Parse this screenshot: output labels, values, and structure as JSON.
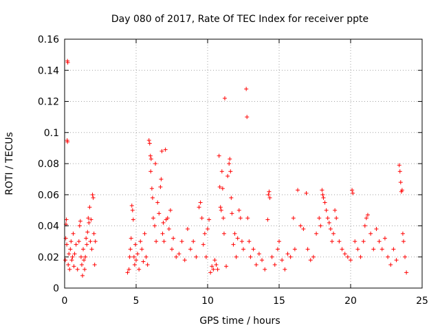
{
  "chart_data": {
    "type": "scatter",
    "title": "Day 080 of 2017, Rate Of TEC Index for receiver ppte",
    "xlabel": "GPS time / hours",
    "ylabel": "ROTI / TECUs",
    "xlim": [
      0,
      25
    ],
    "ylim": [
      0,
      0.16
    ],
    "x_ticks": [
      0,
      5,
      10,
      15,
      20,
      25
    ],
    "x_tick_labels": [
      "0",
      "5",
      "10",
      "15",
      "20",
      "25"
    ],
    "y_ticks": [
      0,
      0.02,
      0.04,
      0.06,
      0.08,
      0.1,
      0.12,
      0.14,
      0.16
    ],
    "y_tick_labels": [
      "0",
      "0.02",
      "0.04",
      "0.06",
      "0.08",
      "0.1",
      "0.12",
      "0.14",
      "0.16"
    ],
    "grid": true,
    "marker": "plus",
    "color": "#ff0000",
    "series": [
      {
        "name": "ROTI",
        "points": [
          [
            0.05,
            0.018
          ],
          [
            0.08,
            0.032
          ],
          [
            0.1,
            0.041
          ],
          [
            0.12,
            0.044
          ],
          [
            0.15,
            0.028
          ],
          [
            0.18,
            0.095
          ],
          [
            0.2,
            0.094
          ],
          [
            0.2,
            0.146
          ],
          [
            0.22,
            0.145
          ],
          [
            0.25,
            0.015
          ],
          [
            0.3,
            0.022
          ],
          [
            0.35,
            0.012
          ],
          [
            0.4,
            0.025
          ],
          [
            0.45,
            0.03
          ],
          [
            0.5,
            0.018
          ],
          [
            0.55,
            0.02
          ],
          [
            0.6,
            0.035
          ],
          [
            0.65,
            0.014
          ],
          [
            0.7,
            0.022
          ],
          [
            0.8,
            0.028
          ],
          [
            0.9,
            0.012
          ],
          [
            1.0,
            0.03
          ],
          [
            1.05,
            0.04
          ],
          [
            1.1,
            0.043
          ],
          [
            1.15,
            0.02
          ],
          [
            1.2,
            0.015
          ],
          [
            1.25,
            0.008
          ],
          [
            1.3,
            0.025
          ],
          [
            1.35,
            0.018
          ],
          [
            1.4,
            0.012
          ],
          [
            1.45,
            0.02
          ],
          [
            1.5,
            0.032
          ],
          [
            1.55,
            0.028
          ],
          [
            1.6,
            0.036
          ],
          [
            1.65,
            0.045
          ],
          [
            1.7,
            0.042
          ],
          [
            1.75,
            0.052
          ],
          [
            1.8,
            0.03
          ],
          [
            1.85,
            0.044
          ],
          [
            1.9,
            0.025
          ],
          [
            1.95,
            0.06
          ],
          [
            2.0,
            0.058
          ],
          [
            2.05,
            0.035
          ],
          [
            2.1,
            0.015
          ],
          [
            2.15,
            0.03
          ],
          [
            4.4,
            0.01
          ],
          [
            4.5,
            0.012
          ],
          [
            4.55,
            0.02
          ],
          [
            4.6,
            0.025
          ],
          [
            4.65,
            0.032
          ],
          [
            4.7,
            0.053
          ],
          [
            4.75,
            0.05
          ],
          [
            4.8,
            0.044
          ],
          [
            4.85,
            0.02
          ],
          [
            4.9,
            0.015
          ],
          [
            4.95,
            0.028
          ],
          [
            5.0,
            0.018
          ],
          [
            5.1,
            0.022
          ],
          [
            5.2,
            0.012
          ],
          [
            5.3,
            0.03
          ],
          [
            5.4,
            0.025
          ],
          [
            5.5,
            0.017
          ],
          [
            5.6,
            0.035
          ],
          [
            5.7,
            0.02
          ],
          [
            5.8,
            0.015
          ],
          [
            5.9,
            0.095
          ],
          [
            5.95,
            0.093
          ],
          [
            6.0,
            0.085
          ],
          [
            6.02,
            0.075
          ],
          [
            6.05,
            0.083
          ],
          [
            6.1,
            0.064
          ],
          [
            6.15,
            0.058
          ],
          [
            6.2,
            0.045
          ],
          [
            6.3,
            0.04
          ],
          [
            6.35,
            0.08
          ],
          [
            6.4,
            0.03
          ],
          [
            6.5,
            0.055
          ],
          [
            6.6,
            0.048
          ],
          [
            6.7,
            0.065
          ],
          [
            6.75,
            0.07
          ],
          [
            6.8,
            0.088
          ],
          [
            6.85,
            0.035
          ],
          [
            6.9,
            0.042
          ],
          [
            6.95,
            0.03
          ],
          [
            7.05,
            0.089
          ],
          [
            7.1,
            0.044
          ],
          [
            7.2,
            0.045
          ],
          [
            7.3,
            0.038
          ],
          [
            7.4,
            0.05
          ],
          [
            7.5,
            0.025
          ],
          [
            7.6,
            0.032
          ],
          [
            7.8,
            0.02
          ],
          [
            8.0,
            0.022
          ],
          [
            8.2,
            0.03
          ],
          [
            8.4,
            0.018
          ],
          [
            8.6,
            0.038
          ],
          [
            8.8,
            0.025
          ],
          [
            9.0,
            0.03
          ],
          [
            9.2,
            0.02
          ],
          [
            9.4,
            0.052
          ],
          [
            9.5,
            0.055
          ],
          [
            9.6,
            0.045
          ],
          [
            9.7,
            0.028
          ],
          [
            9.8,
            0.035
          ],
          [
            9.9,
            0.02
          ],
          [
            10.0,
            0.038
          ],
          [
            10.1,
            0.044
          ],
          [
            10.2,
            0.01
          ],
          [
            10.3,
            0.014
          ],
          [
            10.4,
            0.012
          ],
          [
            10.5,
            0.018
          ],
          [
            10.6,
            0.015
          ],
          [
            10.7,
            0.012
          ],
          [
            10.8,
            0.085
          ],
          [
            10.85,
            0.065
          ],
          [
            10.9,
            0.052
          ],
          [
            10.95,
            0.05
          ],
          [
            11.0,
            0.075
          ],
          [
            11.05,
            0.064
          ],
          [
            11.1,
            0.045
          ],
          [
            11.15,
            0.035
          ],
          [
            11.2,
            0.122
          ],
          [
            11.3,
            0.014
          ],
          [
            11.4,
            0.072
          ],
          [
            11.5,
            0.08
          ],
          [
            11.55,
            0.083
          ],
          [
            11.6,
            0.075
          ],
          [
            11.65,
            0.058
          ],
          [
            11.7,
            0.048
          ],
          [
            11.8,
            0.028
          ],
          [
            11.9,
            0.035
          ],
          [
            12.0,
            0.02
          ],
          [
            12.1,
            0.032
          ],
          [
            12.2,
            0.05
          ],
          [
            12.3,
            0.045
          ],
          [
            12.4,
            0.03
          ],
          [
            12.5,
            0.025
          ],
          [
            12.7,
            0.128
          ],
          [
            12.75,
            0.11
          ],
          [
            12.8,
            0.045
          ],
          [
            12.9,
            0.03
          ],
          [
            13.0,
            0.02
          ],
          [
            13.2,
            0.025
          ],
          [
            13.4,
            0.015
          ],
          [
            13.6,
            0.022
          ],
          [
            13.8,
            0.018
          ],
          [
            14.0,
            0.012
          ],
          [
            14.2,
            0.044
          ],
          [
            14.25,
            0.06
          ],
          [
            14.3,
            0.062
          ],
          [
            14.35,
            0.058
          ],
          [
            14.5,
            0.02
          ],
          [
            14.7,
            0.015
          ],
          [
            14.9,
            0.025
          ],
          [
            15.0,
            0.03
          ],
          [
            15.2,
            0.018
          ],
          [
            15.4,
            0.012
          ],
          [
            15.6,
            0.022
          ],
          [
            15.8,
            0.02
          ],
          [
            16.0,
            0.045
          ],
          [
            16.1,
            0.025
          ],
          [
            16.3,
            0.063
          ],
          [
            16.5,
            0.04
          ],
          [
            16.7,
            0.038
          ],
          [
            16.9,
            0.061
          ],
          [
            17.0,
            0.025
          ],
          [
            17.2,
            0.018
          ],
          [
            17.4,
            0.02
          ],
          [
            17.6,
            0.035
          ],
          [
            17.8,
            0.045
          ],
          [
            17.9,
            0.04
          ],
          [
            18.0,
            0.063
          ],
          [
            18.05,
            0.06
          ],
          [
            18.1,
            0.058
          ],
          [
            18.2,
            0.055
          ],
          [
            18.3,
            0.05
          ],
          [
            18.4,
            0.045
          ],
          [
            18.5,
            0.042
          ],
          [
            18.6,
            0.038
          ],
          [
            18.7,
            0.03
          ],
          [
            18.8,
            0.035
          ],
          [
            18.9,
            0.05
          ],
          [
            19.0,
            0.045
          ],
          [
            19.2,
            0.03
          ],
          [
            19.4,
            0.025
          ],
          [
            19.6,
            0.022
          ],
          [
            19.8,
            0.02
          ],
          [
            20.0,
            0.018
          ],
          [
            20.1,
            0.063
          ],
          [
            20.15,
            0.061
          ],
          [
            20.3,
            0.03
          ],
          [
            20.5,
            0.025
          ],
          [
            20.7,
            0.02
          ],
          [
            20.9,
            0.03
          ],
          [
            21.0,
            0.04
          ],
          [
            21.1,
            0.045
          ],
          [
            21.2,
            0.047
          ],
          [
            21.4,
            0.035
          ],
          [
            21.6,
            0.025
          ],
          [
            21.8,
            0.038
          ],
          [
            22.0,
            0.03
          ],
          [
            22.2,
            0.025
          ],
          [
            22.4,
            0.032
          ],
          [
            22.6,
            0.02
          ],
          [
            22.8,
            0.015
          ],
          [
            23.0,
            0.025
          ],
          [
            23.2,
            0.018
          ],
          [
            23.4,
            0.079
          ],
          [
            23.45,
            0.075
          ],
          [
            23.5,
            0.068
          ],
          [
            23.55,
            0.062
          ],
          [
            23.6,
            0.063
          ],
          [
            23.65,
            0.035
          ],
          [
            23.7,
            0.03
          ],
          [
            23.8,
            0.02
          ],
          [
            23.9,
            0.01
          ]
        ]
      }
    ]
  }
}
